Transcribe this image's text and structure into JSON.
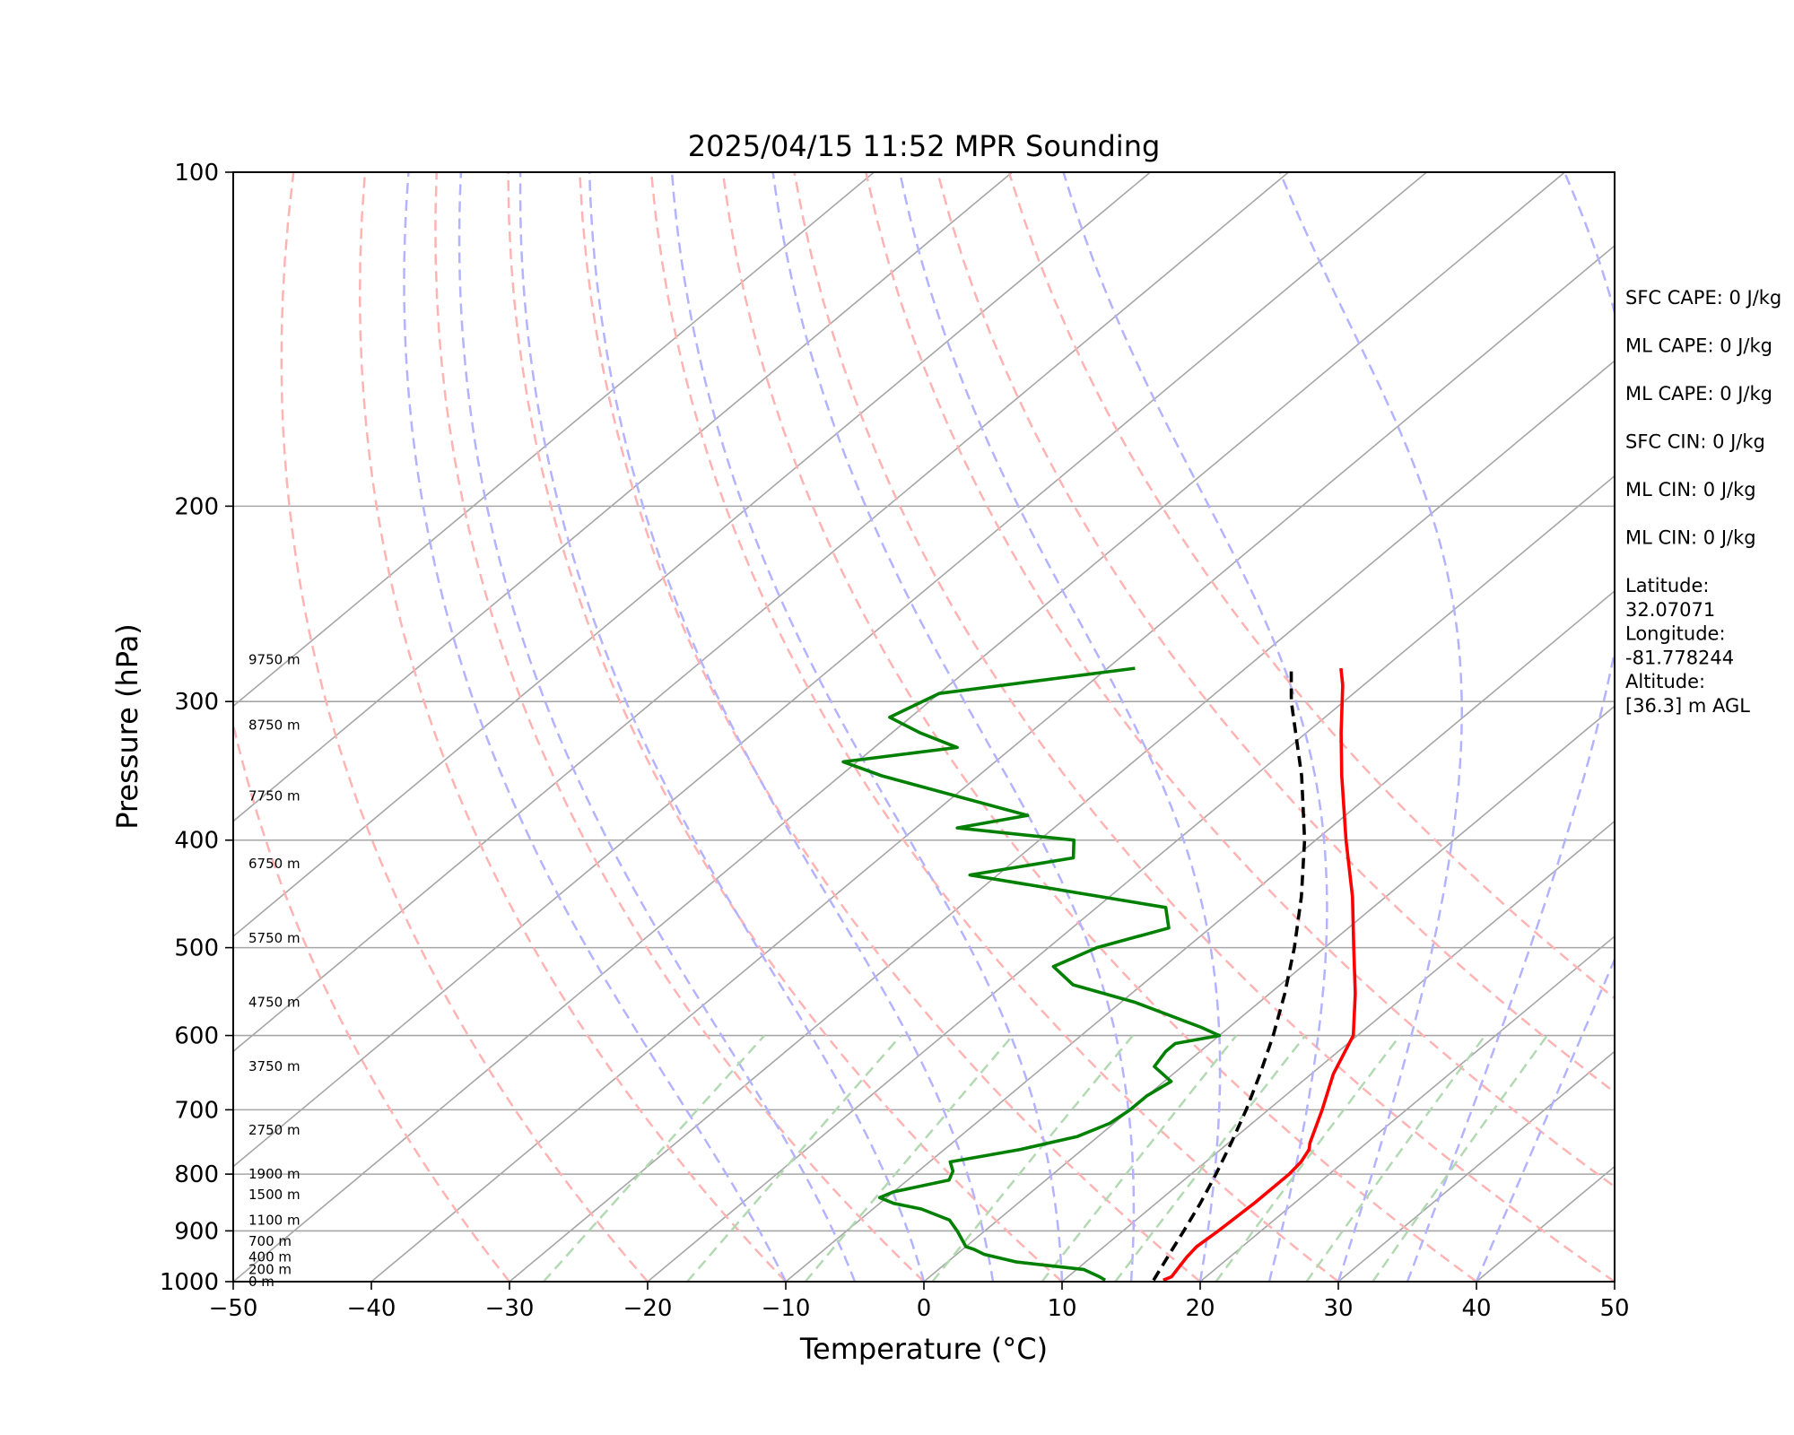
{
  "chart_data": {
    "type": "line",
    "title": "2025/04/15 11:52 MPR Sounding",
    "xlabel": "Temperature (°C)",
    "ylabel": "Pressure (hPa)",
    "xlim": [
      -50,
      50
    ],
    "ylim": [
      1000,
      100
    ],
    "y_scale": "log",
    "skew": "skew-T log-p",
    "grid": true,
    "x_ticks": [
      -50,
      -40,
      -30,
      -20,
      -10,
      0,
      10,
      20,
      30,
      40,
      50
    ],
    "x_tick_labels": [
      "−50",
      "−40",
      "−30",
      "−20",
      "−10",
      "0",
      "10",
      "20",
      "30",
      "40",
      "50"
    ],
    "y_ticks": [
      1000,
      900,
      800,
      700,
      600,
      500,
      400,
      300,
      200,
      100
    ],
    "y_tick_labels": [
      "1000",
      "900",
      "800",
      "700",
      "600",
      "500",
      "400",
      "300",
      "200",
      "100"
    ],
    "colors": {
      "temperature": "#ff0000",
      "dewpoint": "#008000",
      "parcel": "#000000",
      "isotherm": "#a6a6a6",
      "dry_adiabat": "#ffb3b3",
      "moist_adiabat": "#b3b3ff",
      "mixing_ratio": "#b3d9b3",
      "isobar": "#a6a6a6"
    },
    "series": [
      {
        "key": "temperature",
        "points": [
          [
            997,
            17.2
          ],
          [
            990,
            17.5
          ],
          [
            970,
            17.2
          ],
          [
            950,
            16.9
          ],
          [
            930,
            16.7
          ],
          [
            900,
            16.9
          ],
          [
            850,
            17.1
          ],
          [
            800,
            17.1
          ],
          [
            780,
            16.9
          ],
          [
            760,
            16.4
          ],
          [
            750,
            15.9
          ],
          [
            700,
            13.9
          ],
          [
            650,
            11.6
          ],
          [
            600,
            9.7
          ],
          [
            550,
            6.2
          ],
          [
            500,
            2.1
          ],
          [
            450,
            -2.4
          ],
          [
            400,
            -7.8
          ],
          [
            350,
            -13.7
          ],
          [
            320,
            -17.5
          ],
          [
            290,
            -21.5
          ],
          [
            280,
            -23.1
          ]
        ]
      },
      {
        "key": "dewpoint",
        "points": [
          [
            997,
            13.0
          ],
          [
            990,
            12.3
          ],
          [
            975,
            10.5
          ],
          [
            960,
            5.0
          ],
          [
            945,
            2.0
          ],
          [
            935,
            0.8
          ],
          [
            930,
            0.0
          ],
          [
            900,
            -2.0
          ],
          [
            880,
            -3.5
          ],
          [
            860,
            -6.5
          ],
          [
            850,
            -9.0
          ],
          [
            840,
            -10.5
          ],
          [
            830,
            -10.0
          ],
          [
            810,
            -7.0
          ],
          [
            795,
            -7.5
          ],
          [
            780,
            -8.5
          ],
          [
            760,
            -4.5
          ],
          [
            740,
            -1.5
          ],
          [
            720,
            -0.3
          ],
          [
            700,
            0.0
          ],
          [
            680,
            0.0
          ],
          [
            660,
            0.5
          ],
          [
            640,
            -2.0
          ],
          [
            620,
            -2.5
          ],
          [
            610,
            -2.5
          ],
          [
            600,
            0.0
          ],
          [
            590,
            -2.0
          ],
          [
            560,
            -9.0
          ],
          [
            540,
            -15.0
          ],
          [
            520,
            -18.0
          ],
          [
            500,
            -16.5
          ],
          [
            480,
            -13.0
          ],
          [
            460,
            -15.0
          ],
          [
            430,
            -32.0
          ],
          [
            415,
            -26.0
          ],
          [
            400,
            -27.5
          ],
          [
            390,
            -37.0
          ],
          [
            380,
            -33.0
          ],
          [
            350,
            -47.0
          ],
          [
            340,
            -51.0
          ],
          [
            330,
            -44.0
          ],
          [
            320,
            -48.0
          ],
          [
            310,
            -51.5
          ],
          [
            295,
            -50.0
          ],
          [
            280,
            -38.0
          ]
        ]
      },
      {
        "key": "parcel",
        "points": [
          [
            997,
            16.5
          ],
          [
            950,
            15.5
          ],
          [
            900,
            14.4
          ],
          [
            850,
            13.2
          ],
          [
            800,
            11.8
          ],
          [
            750,
            10.2
          ],
          [
            700,
            8.4
          ],
          [
            650,
            6.3
          ],
          [
            600,
            3.9
          ],
          [
            550,
            1.1
          ],
          [
            500,
            -2.2
          ],
          [
            450,
            -6.1
          ],
          [
            400,
            -10.8
          ],
          [
            350,
            -16.6
          ],
          [
            300,
            -23.8
          ],
          [
            280,
            -26.7
          ]
        ]
      }
    ],
    "height_labels": [
      {
        "p": 1000,
        "text": "0 m"
      },
      {
        "p": 975,
        "text": "200 m"
      },
      {
        "p": 950,
        "text": "400 m"
      },
      {
        "p": 920,
        "text": "700 m"
      },
      {
        "p": 880,
        "text": "1100 m"
      },
      {
        "p": 835,
        "text": "1500 m"
      },
      {
        "p": 800,
        "text": "1900 m"
      },
      {
        "p": 730,
        "text": "2750 m"
      },
      {
        "p": 640,
        "text": "3750 m"
      },
      {
        "p": 560,
        "text": "4750 m"
      },
      {
        "p": 490,
        "text": "5750 m"
      },
      {
        "p": 420,
        "text": "6750 m"
      },
      {
        "p": 365,
        "text": "7750 m"
      },
      {
        "p": 315,
        "text": "8750 m"
      },
      {
        "p": 275,
        "text": "9750 m"
      }
    ],
    "isotherms_c": [
      -100,
      -90,
      -80,
      -70,
      -60,
      -50,
      -40,
      -30,
      -20,
      -10,
      0,
      10,
      20,
      30,
      40,
      50
    ],
    "dry_adiabats_c": [
      -30,
      -20,
      -10,
      0,
      10,
      20,
      30,
      40,
      50,
      60,
      70,
      80
    ],
    "moist_adiabats_c": [
      -10,
      -5,
      0,
      5,
      10,
      15,
      20,
      25,
      30,
      35,
      40
    ],
    "mixing_ratios_gkg": [
      0.4,
      1,
      2,
      4,
      7,
      10,
      16,
      24,
      32
    ]
  },
  "info_panel": [
    "SFC CAPE: 0 J/kg",
    "ML CAPE: 0 J/kg",
    "ML CAPE: 0 J/kg",
    "SFC CIN: 0 J/kg",
    "ML CIN: 0 J/kg",
    "ML CIN: 0 J/kg",
    "Latitude:\n32.07071",
    "Longitude:\n-81.778244",
    "Altitude:\n[36.3] m AGL"
  ]
}
